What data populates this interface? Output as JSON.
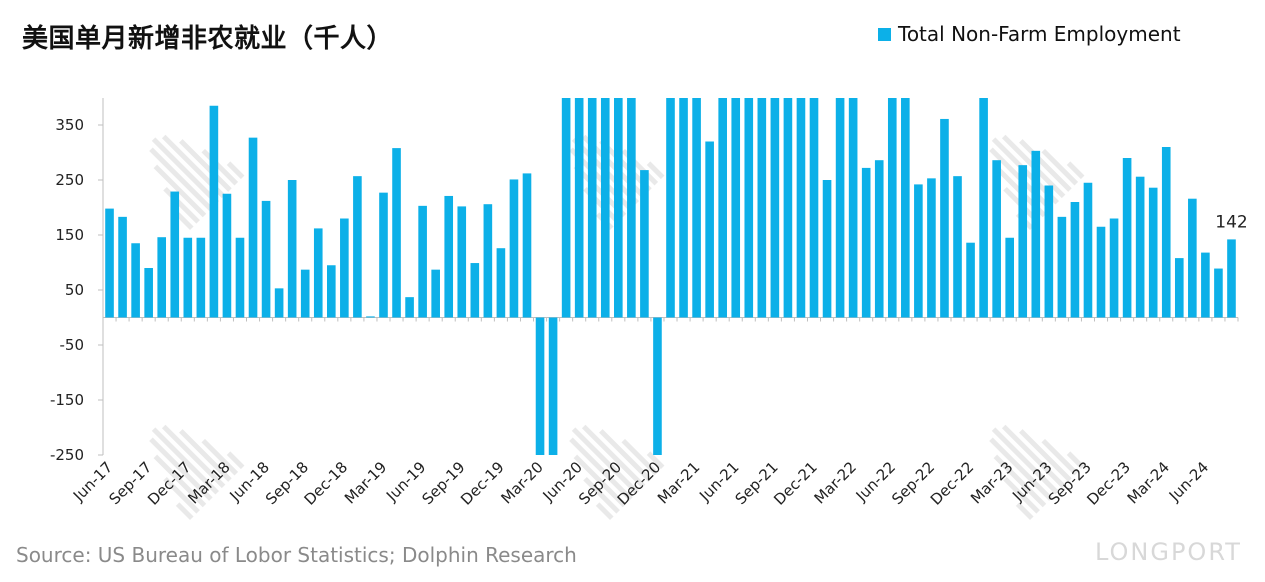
{
  "title": "美国单月新增非农就业（千人）",
  "legend": {
    "label": "Total Non-Farm Employment",
    "color": "#0cb0e8"
  },
  "source": "Source: US Bureau of Lobor Statistics; Dolphin Research",
  "watermark_brand": "LONGPORT",
  "chart_data": {
    "type": "bar",
    "title": "美国单月新增非农就业（千人）",
    "xlabel": "",
    "ylabel": "",
    "ylim": [
      -250,
      400
    ],
    "yticks": [
      350,
      250,
      150,
      50,
      -50,
      -150,
      -250
    ],
    "grid": false,
    "legend_position": "top-right",
    "bar_color": "#0cb0e8",
    "categories": [
      "Jun-17",
      "Jul-17",
      "Aug-17",
      "Sep-17",
      "Oct-17",
      "Nov-17",
      "Dec-17",
      "Jan-18",
      "Feb-18",
      "Mar-18",
      "Apr-18",
      "May-18",
      "Jun-18",
      "Jul-18",
      "Aug-18",
      "Sep-18",
      "Oct-18",
      "Nov-18",
      "Dec-18",
      "Jan-19",
      "Feb-19",
      "Mar-19",
      "Apr-19",
      "May-19",
      "Jun-19",
      "Jul-19",
      "Aug-19",
      "Sep-19",
      "Oct-19",
      "Nov-19",
      "Dec-19",
      "Jan-20",
      "Feb-20",
      "Mar-20",
      "Apr-20",
      "May-20",
      "Jun-20",
      "Jul-20",
      "Aug-20",
      "Sep-20",
      "Oct-20",
      "Nov-20",
      "Dec-20",
      "Jan-21",
      "Feb-21",
      "Mar-21",
      "Apr-21",
      "May-21",
      "Jun-21",
      "Jul-21",
      "Aug-21",
      "Sep-21",
      "Oct-21",
      "Nov-21",
      "Dec-21",
      "Jan-22",
      "Feb-22",
      "Mar-22",
      "Apr-22",
      "May-22",
      "Jun-22",
      "Jul-22",
      "Aug-22",
      "Sep-22",
      "Oct-22",
      "Nov-22",
      "Dec-22",
      "Jan-23",
      "Feb-23",
      "Mar-23",
      "Apr-23",
      "May-23",
      "Jun-23",
      "Jul-23",
      "Aug-23",
      "Sep-23",
      "Oct-23",
      "Nov-23",
      "Dec-23",
      "Jan-24",
      "Feb-24",
      "Mar-24",
      "Apr-24",
      "May-24",
      "Jun-24",
      "Jul-24",
      "Aug-24"
    ],
    "xtick_labels": [
      "Jun-17",
      "Sep-17",
      "Dec-17",
      "Mar-18",
      "Jun-18",
      "Sep-18",
      "Dec-18",
      "Mar-19",
      "Jun-19",
      "Sep-19",
      "Dec-19",
      "Mar-20",
      "Jun-20",
      "Sep-20",
      "Dec-20",
      "Mar-21",
      "Jun-21",
      "Sep-21",
      "Dec-21",
      "Mar-22",
      "Jun-22",
      "Sep-22",
      "Dec-22",
      "Mar-23",
      "Jun-23",
      "Sep-23",
      "Dec-23",
      "Mar-24",
      "Jun-24"
    ],
    "series": [
      {
        "name": "Total Non-Farm Employment",
        "values": [
          198,
          183,
          135,
          90,
          146,
          229,
          145,
          145,
          385,
          225,
          145,
          327,
          212,
          53,
          250,
          87,
          162,
          95,
          180,
          257,
          2,
          227,
          308,
          37,
          203,
          87,
          221,
          202,
          99,
          206,
          126,
          251,
          262,
          -250,
          -250,
          400,
          400,
          400,
          400,
          400,
          400,
          268,
          -250,
          400,
          400,
          400,
          320,
          400,
          400,
          400,
          400,
          400,
          400,
          400,
          400,
          250,
          400,
          400,
          272,
          286,
          400,
          400,
          242,
          253,
          361,
          257,
          136,
          400,
          286,
          145,
          277,
          303,
          240,
          183,
          210,
          245,
          165,
          180,
          290,
          256,
          236,
          310,
          108,
          216,
          118,
          89,
          142
        ]
      }
    ],
    "value_labels": [
      {
        "category": "Aug-24",
        "text": "142"
      }
    ]
  }
}
